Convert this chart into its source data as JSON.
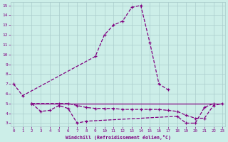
{
  "xlabel": "Windchill (Refroidissement éolien,°C)",
  "x_values": [
    0,
    1,
    2,
    3,
    4,
    5,
    6,
    7,
    8,
    9,
    10,
    11,
    12,
    13,
    14,
    15,
    16,
    17,
    18,
    19,
    20,
    21,
    22,
    23
  ],
  "curve1": [
    7.0,
    5.8,
    null,
    null,
    null,
    null,
    null,
    null,
    null,
    9.8,
    12.0,
    13.0,
    13.4,
    14.8,
    15.0,
    11.2,
    7.0,
    6.4,
    null,
    null,
    null,
    null,
    null,
    null
  ],
  "curve2": [
    null,
    null,
    5.0,
    4.2,
    4.3,
    4.8,
    4.5,
    3.0,
    3.2,
    null,
    null,
    null,
    null,
    null,
    null,
    null,
    null,
    null,
    3.7,
    3.0,
    3.0,
    4.6,
    5.0,
    null
  ],
  "curve3": [
    null,
    null,
    5.0,
    null,
    null,
    5.0,
    5.0,
    4.8,
    4.6,
    4.5,
    4.5,
    4.5,
    4.4,
    4.4,
    4.4,
    4.4,
    4.4,
    4.3,
    4.2,
    3.8,
    3.5,
    3.5,
    4.8,
    5.0
  ],
  "curve4_x": [
    2,
    23
  ],
  "curve4_y": [
    5.0,
    5.0
  ],
  "ylim": [
    3,
    15
  ],
  "xlim": [
    0,
    23
  ],
  "yticks": [
    3,
    4,
    5,
    6,
    7,
    8,
    9,
    10,
    11,
    12,
    13,
    14,
    15
  ],
  "xticks": [
    0,
    1,
    2,
    3,
    4,
    5,
    6,
    7,
    8,
    9,
    10,
    11,
    12,
    13,
    14,
    15,
    16,
    17,
    18,
    19,
    20,
    21,
    22,
    23
  ],
  "line_color": "#800080",
  "bg_color": "#cceee8",
  "grid_color": "#aacccc",
  "font_color": "#800080"
}
